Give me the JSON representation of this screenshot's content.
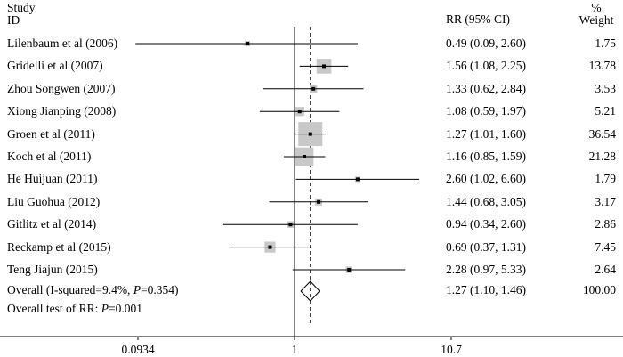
{
  "header": {
    "study_line1": "Study",
    "study_line2": "ID",
    "rr": "RR (95% CI)",
    "weight_line1": "%",
    "weight_line2": "Weight"
  },
  "chart_data": {
    "type": "forest",
    "x_scale": "log",
    "x_ticks": [
      {
        "value": 0.0934,
        "label": "0.0934"
      },
      {
        "value": 1,
        "label": "1"
      },
      {
        "value": 10.7,
        "label": "10.7"
      }
    ],
    "null_line": 1,
    "overall_line": 1.27,
    "studies": [
      {
        "name": "Lilenbaum et al (2006)",
        "rr": 0.49,
        "lower": 0.09,
        "upper": 2.6,
        "ci_text": "0.49 (0.09, 2.60)",
        "weight": 1.75,
        "weight_text": "1.75"
      },
      {
        "name": "Gridelli et al (2007)",
        "rr": 1.56,
        "lower": 1.08,
        "upper": 2.25,
        "ci_text": "1.56 (1.08, 2.25)",
        "weight": 13.78,
        "weight_text": "13.78"
      },
      {
        "name": "Zhou Songwen (2007)",
        "rr": 1.33,
        "lower": 0.62,
        "upper": 2.84,
        "ci_text": "1.33 (0.62, 2.84)",
        "weight": 3.53,
        "weight_text": "3.53"
      },
      {
        "name": "Xiong Jianping (2008)",
        "rr": 1.08,
        "lower": 0.59,
        "upper": 1.97,
        "ci_text": "1.08 (0.59, 1.97)",
        "weight": 5.21,
        "weight_text": "5.21"
      },
      {
        "name": "Groen et al (2011)",
        "rr": 1.27,
        "lower": 1.01,
        "upper": 1.6,
        "ci_text": "1.27 (1.01, 1.60)",
        "weight": 36.54,
        "weight_text": "36.54"
      },
      {
        "name": "Koch et al (2011)",
        "rr": 1.16,
        "lower": 0.85,
        "upper": 1.59,
        "ci_text": "1.16 (0.85, 1.59)",
        "weight": 21.28,
        "weight_text": "21.28"
      },
      {
        "name": "He Huijuan (2011)",
        "rr": 2.6,
        "lower": 1.02,
        "upper": 6.6,
        "ci_text": "2.60 (1.02, 6.60)",
        "weight": 1.79,
        "weight_text": "1.79"
      },
      {
        "name": "Liu Guohua (2012)",
        "rr": 1.44,
        "lower": 0.68,
        "upper": 3.05,
        "ci_text": "1.44 (0.68, 3.05)",
        "weight": 3.17,
        "weight_text": "3.17"
      },
      {
        "name": "Gitlitz et al (2014)",
        "rr": 0.94,
        "lower": 0.34,
        "upper": 2.6,
        "ci_text": "0.94 (0.34, 2.60)",
        "weight": 2.86,
        "weight_text": "2.86"
      },
      {
        "name": "Reckamp et al (2015)",
        "rr": 0.69,
        "lower": 0.37,
        "upper": 1.31,
        "ci_text": "0.69 (0.37, 1.31)",
        "weight": 7.45,
        "weight_text": "7.45"
      },
      {
        "name": "Teng Jiajun (2015)",
        "rr": 2.28,
        "lower": 0.97,
        "upper": 5.33,
        "ci_text": "2.28 (0.97, 5.33)",
        "weight": 2.64,
        "weight_text": "2.64"
      }
    ],
    "overall": {
      "label_prefix": "Overall  (I-squared=9.4%, ",
      "label_p_italic": "P",
      "label_suffix": "=0.354)",
      "rr": 1.27,
      "lower": 1.1,
      "upper": 1.46,
      "ci_text": "1.27 (1.10, 1.46)",
      "weight_text": "100.00"
    },
    "overall_test": {
      "prefix": "Overall test of RR: ",
      "p_italic": "P",
      "suffix": "=0.001"
    }
  }
}
